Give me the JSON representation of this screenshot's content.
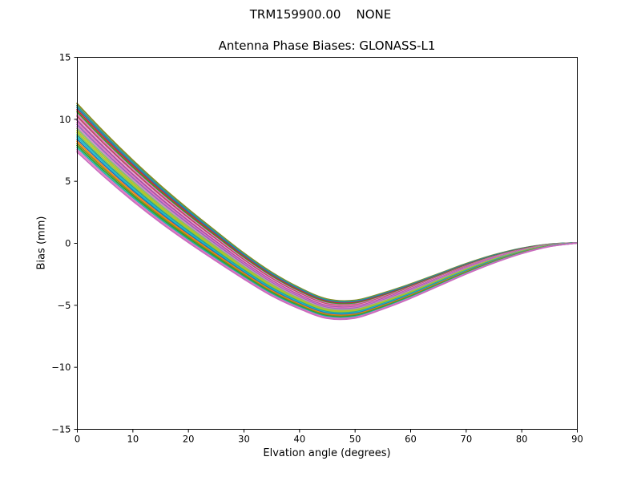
{
  "figure": {
    "suptitle": "TRM159900.00    NONE",
    "background": "#ffffff",
    "frame_color": "#000000"
  },
  "chart_data": {
    "type": "line",
    "title": "Antenna Phase Biases: GLONASS-L1",
    "xlabel": "Elvation angle (degrees)",
    "ylabel": "Bias (mm)",
    "xlim": [
      0,
      90
    ],
    "ylim": [
      -15,
      15
    ],
    "x_ticks": [
      0,
      10,
      20,
      30,
      40,
      50,
      60,
      70,
      80,
      90
    ],
    "x_tick_labels": [
      "0",
      "10",
      "20",
      "30",
      "40",
      "50",
      "60",
      "70",
      "80",
      "90"
    ],
    "y_ticks": [
      15,
      10,
      5,
      0,
      -5,
      -10,
      -15
    ],
    "y_tick_labels": [
      "15",
      "10",
      "5",
      "0",
      "−5",
      "−10",
      "−15"
    ],
    "grid": false,
    "legend": "none",
    "x": [
      0,
      5,
      10,
      15,
      20,
      25,
      30,
      35,
      40,
      45,
      50,
      55,
      60,
      65,
      70,
      75,
      80,
      85,
      90
    ],
    "series": [
      {
        "color": "#8a8a1a",
        "values": [
          11.25,
          8.9,
          6.7,
          4.65,
          2.75,
          0.95,
          -0.8,
          -2.35,
          -3.6,
          -4.52,
          -4.63,
          -4.05,
          -3.32,
          -2.5,
          -1.68,
          -0.97,
          -0.43,
          -0.1,
          0.01
        ]
      },
      {
        "color": "#2e9e8e",
        "values": [
          11.08,
          8.74,
          6.56,
          4.52,
          2.63,
          0.85,
          -0.89,
          -2.43,
          -3.67,
          -4.59,
          -4.69,
          -4.11,
          -3.37,
          -2.54,
          -1.72,
          -1.0,
          -0.45,
          -0.11,
          0.01
        ]
      },
      {
        "color": "#1f77b4",
        "values": [
          10.91,
          8.59,
          6.41,
          4.39,
          2.52,
          0.74,
          -0.98,
          -2.52,
          -3.75,
          -4.66,
          -4.76,
          -4.16,
          -3.42,
          -2.59,
          -1.75,
          -1.03,
          -0.47,
          -0.12,
          0.01
        ]
      },
      {
        "color": "#d62728",
        "values": [
          10.74,
          8.43,
          6.27,
          4.26,
          2.4,
          0.64,
          -1.07,
          -2.6,
          -3.82,
          -4.72,
          -4.82,
          -4.22,
          -3.47,
          -2.63,
          -1.79,
          -1.06,
          -0.49,
          -0.13,
          0.01
        ]
      },
      {
        "color": "#2ca02c",
        "values": [
          10.57,
          8.27,
          6.13,
          4.13,
          2.28,
          0.53,
          -1.17,
          -2.68,
          -3.9,
          -4.79,
          -4.88,
          -4.28,
          -3.52,
          -2.67,
          -1.83,
          -1.08,
          -0.51,
          -0.13,
          0.01
        ]
      },
      {
        "color": "#e377c2",
        "values": [
          10.4,
          8.12,
          5.98,
          4.0,
          2.16,
          0.43,
          -1.26,
          -2.76,
          -3.97,
          -4.86,
          -4.94,
          -4.33,
          -3.57,
          -2.72,
          -1.86,
          -1.11,
          -0.53,
          -0.14,
          0.01
        ]
      },
      {
        "color": "#b5485d",
        "values": [
          10.23,
          7.96,
          5.84,
          3.87,
          2.05,
          0.32,
          -1.35,
          -2.85,
          -4.04,
          -4.93,
          -5.01,
          -4.39,
          -3.62,
          -2.76,
          -1.9,
          -1.14,
          -0.54,
          -0.15,
          0.0
        ]
      },
      {
        "color": "#e8a0d0",
        "values": [
          10.06,
          7.8,
          5.7,
          3.74,
          1.93,
          0.22,
          -1.44,
          -2.93,
          -4.12,
          -4.99,
          -5.07,
          -4.45,
          -3.67,
          -2.8,
          -1.94,
          -1.17,
          -0.56,
          -0.16,
          0.0
        ]
      },
      {
        "color": "#a34fa3",
        "values": [
          9.89,
          7.65,
          5.55,
          3.61,
          1.81,
          0.12,
          -1.53,
          -3.01,
          -4.19,
          -5.06,
          -5.13,
          -4.5,
          -3.72,
          -2.85,
          -1.97,
          -1.2,
          -0.58,
          -0.17,
          0.0
        ]
      },
      {
        "color": "#e377c2",
        "values": [
          9.72,
          7.49,
          5.41,
          3.48,
          1.69,
          0.01,
          -1.62,
          -3.09,
          -4.27,
          -5.13,
          -5.19,
          -4.56,
          -3.77,
          -2.89,
          -2.01,
          -1.23,
          -0.6,
          -0.18,
          0.0
        ]
      },
      {
        "color": "#9467bd",
        "values": [
          9.55,
          7.33,
          5.27,
          3.35,
          1.58,
          -0.09,
          -1.71,
          -3.18,
          -4.34,
          -5.2,
          -5.26,
          -4.62,
          -3.82,
          -2.93,
          -2.05,
          -1.26,
          -0.62,
          -0.19,
          0.0
        ]
      },
      {
        "color": "#cf8ac4",
        "values": [
          9.38,
          7.18,
          5.12,
          3.22,
          1.46,
          -0.2,
          -1.8,
          -3.26,
          -4.41,
          -5.27,
          -5.32,
          -4.67,
          -3.87,
          -2.98,
          -2.08,
          -1.29,
          -0.64,
          -0.2,
          0.0
        ]
      },
      {
        "color": "#7fbf6f",
        "values": [
          9.22,
          7.02,
          4.98,
          3.08,
          1.34,
          -0.3,
          -1.9,
          -3.34,
          -4.49,
          -5.33,
          -5.38,
          -4.73,
          -3.93,
          -3.02,
          -2.12,
          -1.31,
          -0.66,
          -0.2,
          0.0
        ]
      },
      {
        "color": "#bcbd22",
        "values": [
          9.05,
          6.87,
          4.83,
          2.95,
          1.22,
          -0.41,
          -1.99,
          -3.42,
          -4.56,
          -5.4,
          -5.44,
          -4.78,
          -3.98,
          -3.07,
          -2.15,
          -1.34,
          -0.68,
          -0.21,
          0.0
        ]
      },
      {
        "color": "#9acd32",
        "values": [
          8.88,
          6.71,
          4.69,
          2.82,
          1.11,
          -0.51,
          -2.08,
          -3.51,
          -4.63,
          -5.47,
          -5.51,
          -4.84,
          -4.03,
          -3.11,
          -2.19,
          -1.37,
          -0.7,
          -0.22,
          0.0
        ]
      },
      {
        "color": "#2e9e8e",
        "values": [
          8.71,
          6.55,
          4.55,
          2.69,
          0.99,
          -0.62,
          -2.17,
          -3.59,
          -4.71,
          -5.54,
          -5.57,
          -4.9,
          -4.08,
          -3.15,
          -2.23,
          -1.4,
          -0.72,
          -0.23,
          0.0
        ]
      },
      {
        "color": "#17becf",
        "values": [
          8.54,
          6.4,
          4.4,
          2.56,
          0.87,
          -0.72,
          -2.26,
          -3.67,
          -4.78,
          -5.61,
          -5.63,
          -4.95,
          -4.13,
          -3.2,
          -2.26,
          -1.43,
          -0.74,
          -0.24,
          0.0
        ]
      },
      {
        "color": "#1f77b4",
        "values": [
          8.37,
          6.24,
          4.26,
          2.43,
          0.75,
          -0.82,
          -2.35,
          -3.75,
          -4.86,
          -5.67,
          -5.69,
          -5.01,
          -4.18,
          -3.24,
          -2.3,
          -1.46,
          -0.76,
          -0.25,
          0.0
        ]
      },
      {
        "color": "#ff7f0e",
        "values": [
          8.2,
          6.08,
          4.12,
          2.3,
          0.64,
          -0.93,
          -2.44,
          -3.84,
          -4.93,
          -5.74,
          -5.76,
          -5.07,
          -4.23,
          -3.28,
          -2.34,
          -1.49,
          -0.77,
          -0.26,
          -0.01
        ]
      },
      {
        "color": "#8a8a1a",
        "values": [
          8.03,
          5.93,
          3.97,
          2.17,
          0.52,
          -1.03,
          -2.53,
          -3.92,
          -5.0,
          -5.81,
          -5.82,
          -5.12,
          -4.28,
          -3.33,
          -2.37,
          -1.52,
          -0.79,
          -0.27,
          -0.01
        ]
      },
      {
        "color": "#2ca02c",
        "values": [
          7.86,
          5.77,
          3.83,
          2.04,
          0.4,
          -1.14,
          -2.63,
          -4.0,
          -5.08,
          -5.88,
          -5.88,
          -5.18,
          -4.33,
          -3.37,
          -2.41,
          -1.54,
          -0.81,
          -0.27,
          -0.01
        ]
      },
      {
        "color": "#20b2aa",
        "values": [
          7.69,
          5.61,
          3.69,
          1.91,
          0.28,
          -1.24,
          -2.72,
          -4.08,
          -5.15,
          -5.94,
          -5.94,
          -5.24,
          -4.38,
          -3.41,
          -2.45,
          -1.57,
          -0.83,
          -0.28,
          -0.01
        ]
      },
      {
        "color": "#e377c2",
        "values": [
          7.52,
          5.46,
          3.54,
          1.78,
          0.17,
          -1.35,
          -2.81,
          -4.17,
          -5.23,
          -6.01,
          -6.01,
          -5.29,
          -4.43,
          -3.46,
          -2.48,
          -1.6,
          -0.85,
          -0.29,
          -0.01
        ]
      },
      {
        "color": "#c96bbd",
        "values": [
          7.35,
          5.3,
          3.4,
          1.65,
          0.05,
          -1.45,
          -2.9,
          -4.25,
          -5.3,
          -6.08,
          -6.07,
          -5.35,
          -4.48,
          -3.5,
          -2.52,
          -1.63,
          -0.87,
          -0.3,
          -0.01
        ]
      }
    ]
  }
}
